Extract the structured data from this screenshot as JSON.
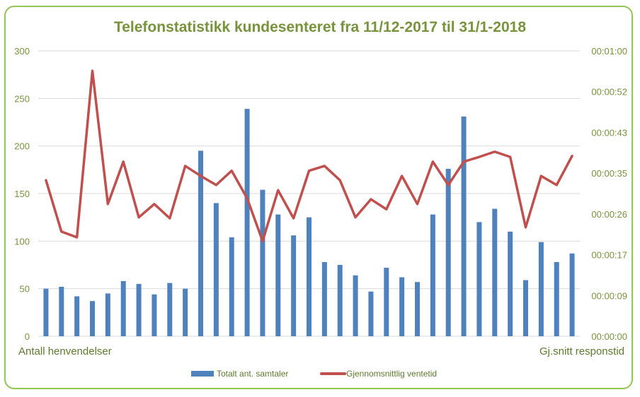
{
  "chart_data": {
    "type": "bar+line",
    "title": "Telefonstatistikk kundesenteret fra 11/12-2017 til 31/1-2018",
    "ylabel": "Antall henvendelser",
    "y2label": "Gj.snitt responstid",
    "ylim": [
      0,
      300
    ],
    "yticks": [
      "0",
      "50",
      "100",
      "150",
      "200",
      "250",
      "300"
    ],
    "y2lim_seconds": [
      0,
      60
    ],
    "y2ticks": [
      "00:00:00",
      "00:00:09",
      "00:00:17",
      "00:00:26",
      "00:00:35",
      "00:00:43",
      "00:00:52",
      "00:01:00"
    ],
    "grid": true,
    "legend_position": "bottom",
    "series": [
      {
        "name": "Totalt ant. samtaler",
        "type": "bar",
        "axis": "left",
        "color": "#4f81bd",
        "values": [
          50,
          52,
          42,
          37,
          45,
          58,
          55,
          44,
          56,
          50,
          195,
          140,
          104,
          239,
          154,
          128,
          106,
          125,
          78,
          75,
          64,
          47,
          72,
          62,
          57,
          128,
          176,
          231,
          120,
          134,
          110,
          59,
          99,
          78,
          87
        ]
      },
      {
        "name": "Gjennomsnittlig ventetid",
        "type": "line",
        "axis": "right",
        "unit": "seconds",
        "color": "#c0504d",
        "values": [
          32.8,
          22,
          20.8,
          55.8,
          27.8,
          36.7,
          25,
          27.8,
          24.8,
          35.8,
          33.7,
          31.8,
          34.8,
          29,
          20,
          30.7,
          24.8,
          34.8,
          35.8,
          32.8,
          25,
          28.8,
          26.7,
          33.7,
          27.8,
          36.7,
          31.8,
          36.7,
          37.7,
          38.8,
          37.7,
          22.9,
          33.7,
          31.8,
          37.9
        ]
      }
    ]
  }
}
